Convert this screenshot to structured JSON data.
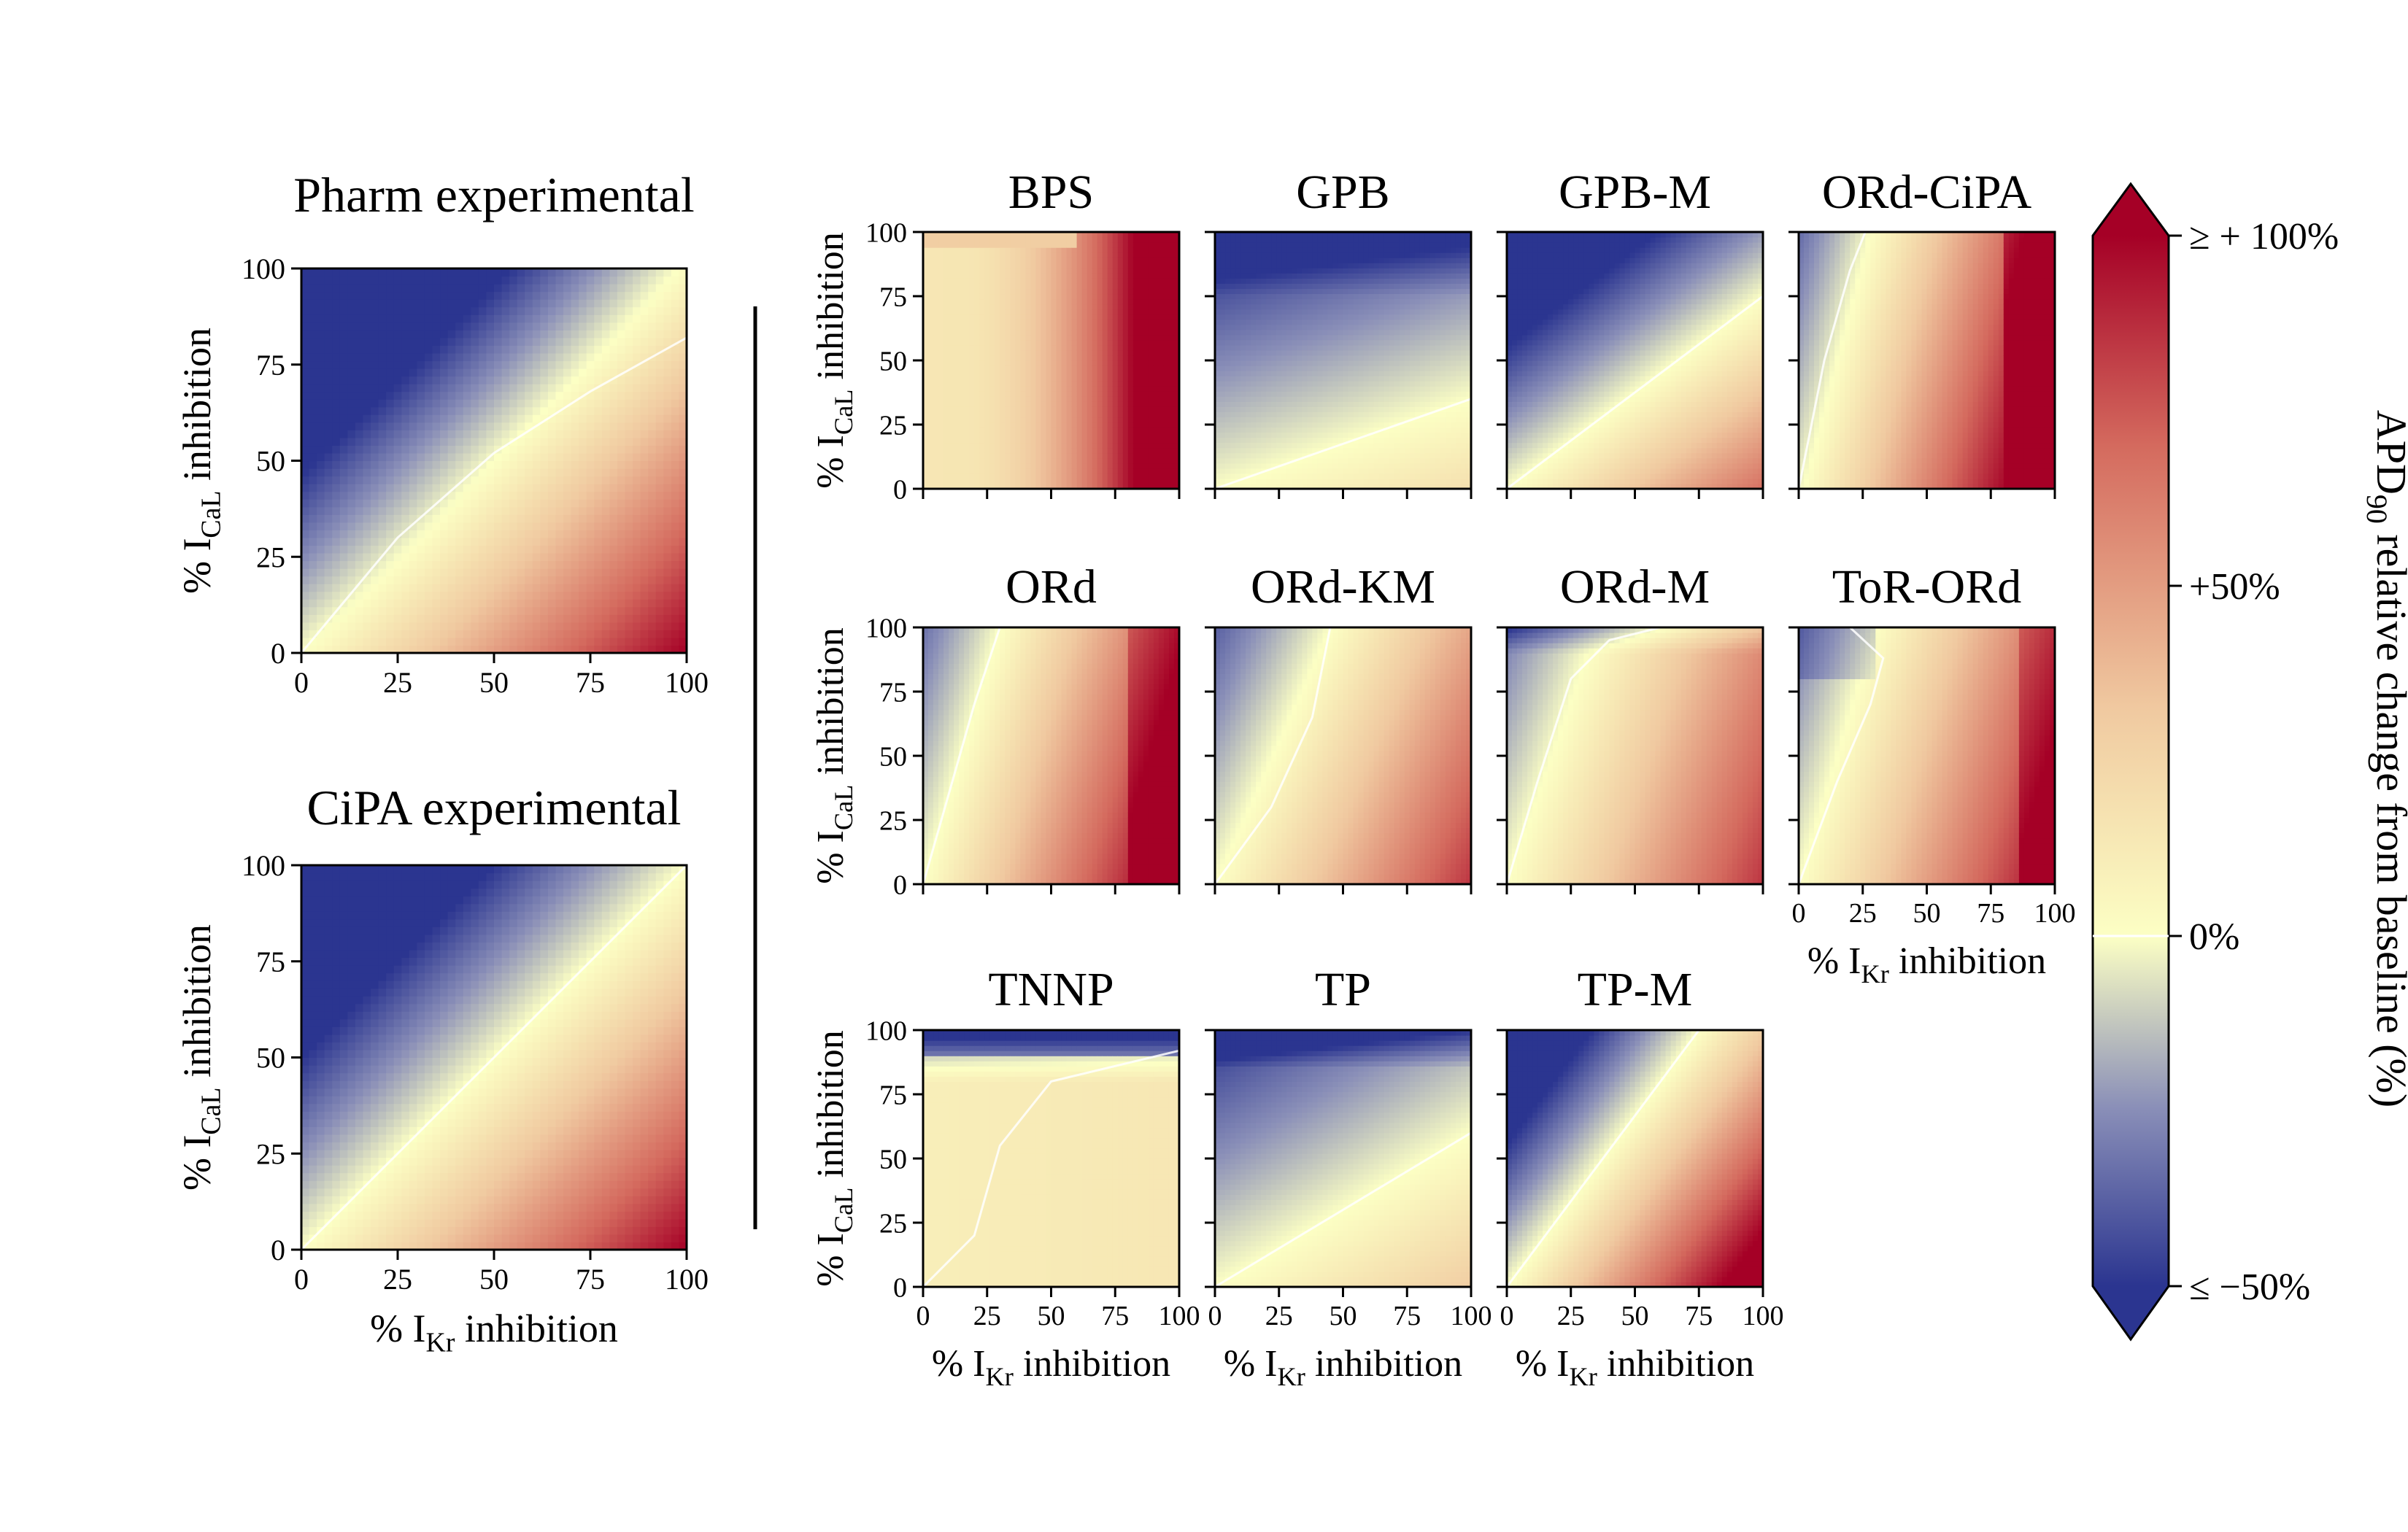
{
  "figure": {
    "colorbar": {
      "label_main": "APD",
      "label_sub": "90",
      "label_rest": " relative change from baseline (%)",
      "ticks": [
        {
          "value": 100,
          "label": "≥ + 100%"
        },
        {
          "value": 50,
          "label": "+50%"
        },
        {
          "value": 0,
          "label": "0%"
        },
        {
          "value": -50,
          "label": "≤ −50%"
        }
      ],
      "range": [
        -50,
        100
      ],
      "colors": [
        "#2b3590",
        "#fcffc4",
        "#a50026"
      ]
    },
    "axis_text": {
      "x_prefix": "% I",
      "x_sub": "Kr",
      "x_suffix": " inhibition",
      "y_prefix": "% I",
      "y_sub": "CaL",
      "y_suffix": " inhibition"
    }
  },
  "chart_data": [
    {
      "type": "heatmap",
      "title": "Pharm experimental",
      "model": "experimental",
      "slope": 1.0,
      "ytick_labels": true,
      "xtick_labels": true,
      "xlabel": false,
      "ylabel": true,
      "xlim": [
        0,
        100
      ],
      "ylim": [
        0,
        100
      ],
      "ticks": [
        0,
        25,
        50,
        75,
        100
      ],
      "zero_contour": [
        [
          0,
          0
        ],
        [
          25,
          30
        ],
        [
          50,
          52
        ],
        [
          75,
          68
        ],
        [
          100,
          82
        ]
      ]
    },
    {
      "type": "heatmap",
      "title": "CiPA experimental",
      "model": "experimental",
      "slope": 1.0,
      "ytick_labels": true,
      "xtick_labels": true,
      "xlabel": true,
      "ylabel": true,
      "xlim": [
        0,
        100
      ],
      "ylim": [
        0,
        100
      ],
      "ticks": [
        0,
        25,
        50,
        75,
        100
      ],
      "zero_contour": [
        [
          0,
          0
        ],
        [
          50,
          50
        ],
        [
          100,
          100
        ]
      ]
    },
    {
      "type": "heatmap",
      "title": "BPS",
      "model": "bps",
      "ytick_labels": true,
      "xtick_labels": false,
      "xlabel": false,
      "ylabel": true,
      "xlim": [
        0,
        100
      ],
      "ylim": [
        0,
        100
      ],
      "ticks": [
        0,
        25,
        50,
        75,
        100
      ],
      "zero_contour": [
        [
          0,
          0
        ],
        [
          0,
          100
        ]
      ]
    },
    {
      "type": "heatmap",
      "title": "GPB",
      "model": "gpb",
      "ytick_labels": false,
      "xtick_labels": false,
      "xlabel": false,
      "ylabel": false,
      "xlim": [
        0,
        100
      ],
      "ylim": [
        0,
        100
      ],
      "ticks": [
        0,
        25,
        50,
        75,
        100
      ],
      "zero_contour": [
        [
          0,
          0
        ],
        [
          100,
          35
        ]
      ]
    },
    {
      "type": "heatmap",
      "title": "GPB-M",
      "model": "gpbm",
      "ytick_labels": false,
      "xtick_labels": false,
      "xlabel": false,
      "ylabel": false,
      "xlim": [
        0,
        100
      ],
      "ylim": [
        0,
        100
      ],
      "ticks": [
        0,
        25,
        50,
        75,
        100
      ],
      "zero_contour": [
        [
          0,
          0
        ],
        [
          100,
          75
        ]
      ]
    },
    {
      "type": "heatmap",
      "title": "ORd-CiPA",
      "model": "ordcipa",
      "ytick_labels": false,
      "xtick_labels": false,
      "xlabel": false,
      "ylabel": false,
      "xlim": [
        0,
        100
      ],
      "ylim": [
        0,
        100
      ],
      "ticks": [
        0,
        25,
        50,
        75,
        100
      ],
      "zero_contour": [
        [
          0,
          0
        ],
        [
          10,
          50
        ],
        [
          20,
          85
        ],
        [
          26,
          100
        ]
      ]
    },
    {
      "type": "heatmap",
      "title": "ORd",
      "model": "ord",
      "ytick_labels": true,
      "xtick_labels": false,
      "xlabel": false,
      "ylabel": true,
      "xlim": [
        0,
        100
      ],
      "ylim": [
        0,
        100
      ],
      "ticks": [
        0,
        25,
        50,
        75,
        100
      ],
      "zero_contour": [
        [
          0,
          0
        ],
        [
          10,
          35
        ],
        [
          20,
          70
        ],
        [
          30,
          100
        ]
      ]
    },
    {
      "type": "heatmap",
      "title": "ORd-KM",
      "model": "ordkm",
      "ytick_labels": false,
      "xtick_labels": false,
      "xlabel": false,
      "ylabel": false,
      "xlim": [
        0,
        100
      ],
      "ylim": [
        0,
        100
      ],
      "ticks": [
        0,
        25,
        50,
        75,
        100
      ],
      "zero_contour": [
        [
          0,
          0
        ],
        [
          22,
          30
        ],
        [
          38,
          65
        ],
        [
          45,
          100
        ]
      ]
    },
    {
      "type": "heatmap",
      "title": "ORd-M",
      "model": "ordm",
      "ytick_labels": false,
      "xtick_labels": false,
      "xlabel": false,
      "ylabel": false,
      "xlim": [
        0,
        100
      ],
      "ylim": [
        0,
        100
      ],
      "ticks": [
        0,
        25,
        50,
        75,
        100
      ],
      "zero_contour": [
        [
          0,
          0
        ],
        [
          12,
          40
        ],
        [
          25,
          80
        ],
        [
          40,
          95
        ],
        [
          60,
          100
        ]
      ]
    },
    {
      "type": "heatmap",
      "title": "ToR-ORd",
      "model": "tor",
      "ytick_labels": false,
      "xtick_labels": true,
      "xlabel": true,
      "ylabel": false,
      "xlim": [
        0,
        100
      ],
      "ylim": [
        0,
        100
      ],
      "ticks": [
        0,
        25,
        50,
        75,
        100
      ],
      "zero_contour": [
        [
          0,
          0
        ],
        [
          15,
          40
        ],
        [
          28,
          70
        ],
        [
          33,
          88
        ],
        [
          20,
          100
        ]
      ]
    },
    {
      "type": "heatmap",
      "title": "TNNP",
      "model": "tnnp",
      "ytick_labels": true,
      "xtick_labels": true,
      "xlabel": true,
      "ylabel": true,
      "xlim": [
        0,
        100
      ],
      "ylim": [
        0,
        100
      ],
      "ticks": [
        0,
        25,
        50,
        75,
        100
      ],
      "zero_contour": [
        [
          0,
          0
        ],
        [
          20,
          20
        ],
        [
          30,
          55
        ],
        [
          50,
          80
        ],
        [
          100,
          92
        ]
      ]
    },
    {
      "type": "heatmap",
      "title": "TP",
      "model": "tp",
      "ytick_labels": false,
      "xtick_labels": true,
      "xlabel": true,
      "ylabel": false,
      "xlim": [
        0,
        100
      ],
      "ylim": [
        0,
        100
      ],
      "ticks": [
        0,
        25,
        50,
        75,
        100
      ],
      "zero_contour": [
        [
          0,
          0
        ],
        [
          100,
          60
        ]
      ]
    },
    {
      "type": "heatmap",
      "title": "TP-M",
      "model": "tpm",
      "ytick_labels": false,
      "xtick_labels": true,
      "xlabel": true,
      "ylabel": false,
      "xlim": [
        0,
        100
      ],
      "ylim": [
        0,
        100
      ],
      "ticks": [
        0,
        25,
        50,
        75,
        100
      ],
      "zero_contour": [
        [
          0,
          0
        ],
        [
          75,
          100
        ]
      ]
    }
  ]
}
